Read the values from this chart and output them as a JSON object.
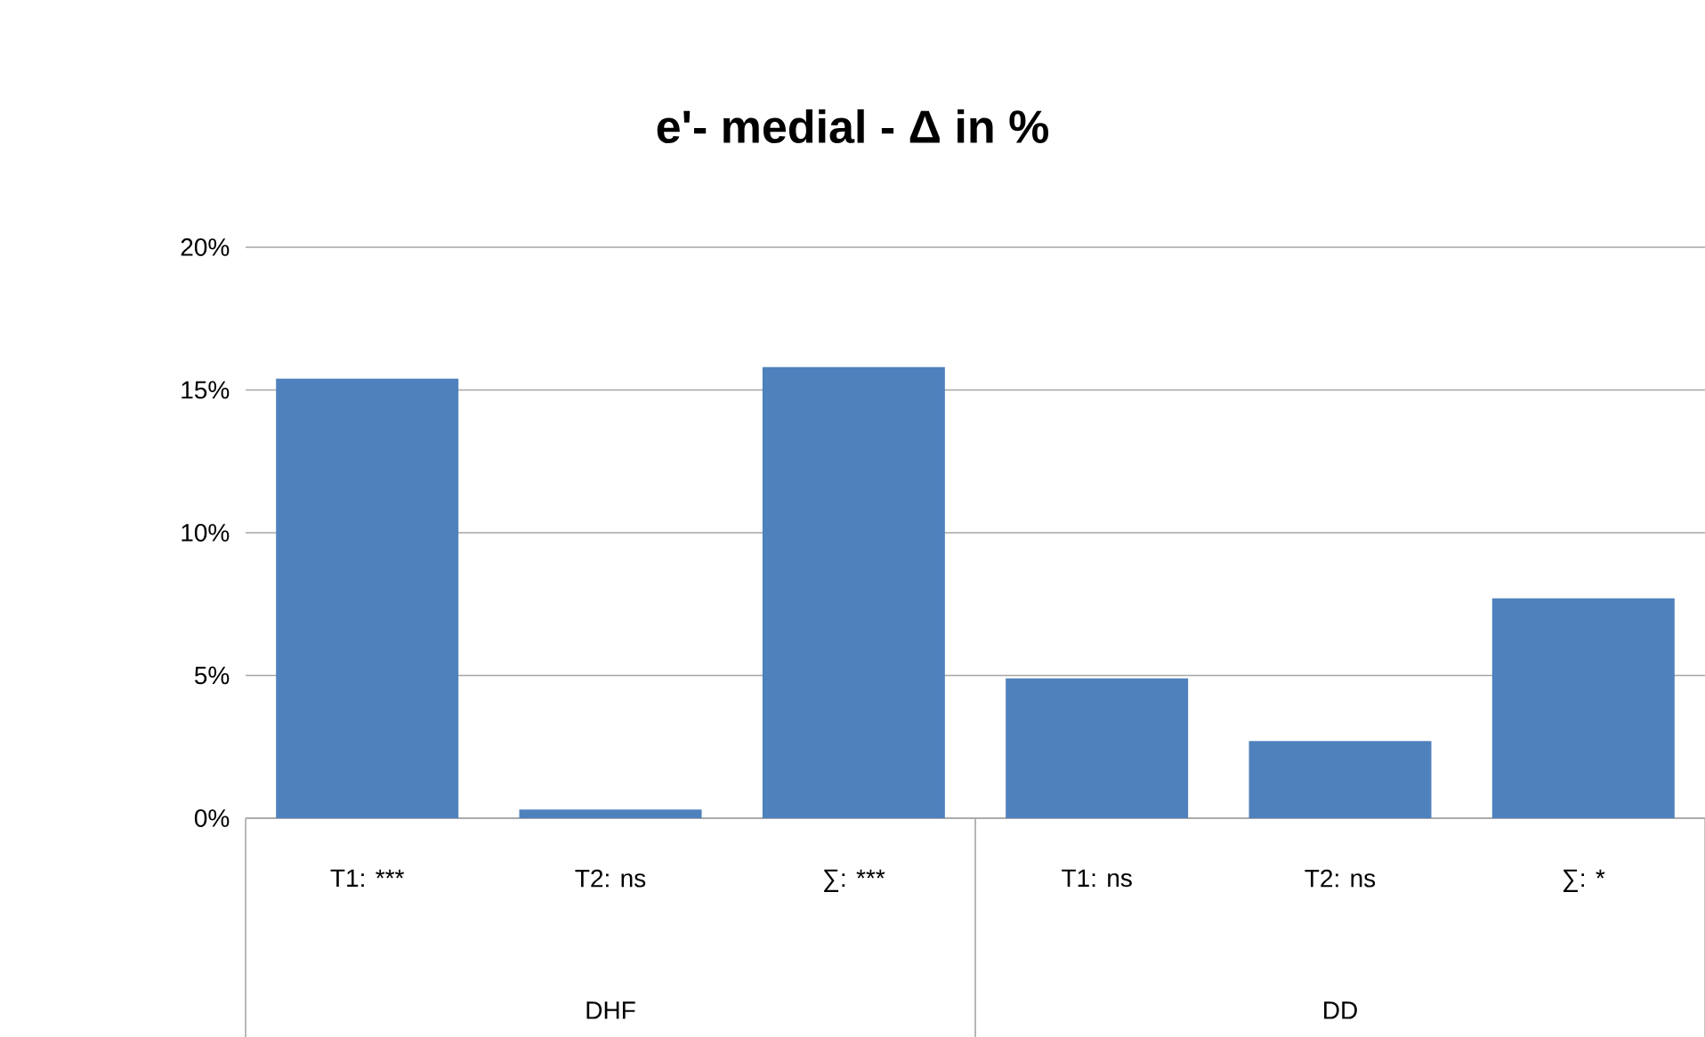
{
  "chart_data": {
    "type": "bar",
    "title": "e'- medial - Δ in %",
    "categories": [
      "T1: ***",
      "T2: ns",
      "∑: ***",
      "T1: ns",
      "T2: ns",
      "∑: *"
    ],
    "values": [
      15.4,
      0.3,
      15.8,
      4.9,
      2.7,
      7.7
    ],
    "color": "#4f81bd",
    "ylim": [
      0,
      20
    ],
    "yticks": [
      {
        "value": 0,
        "label": "0%"
      },
      {
        "value": 5,
        "label": "5%"
      },
      {
        "value": 10,
        "label": "10%"
      },
      {
        "value": 15,
        "label": "15%"
      },
      {
        "value": 20,
        "label": "20%"
      }
    ],
    "grid": "y",
    "annotations": [
      "DHF",
      "DD"
    ]
  }
}
